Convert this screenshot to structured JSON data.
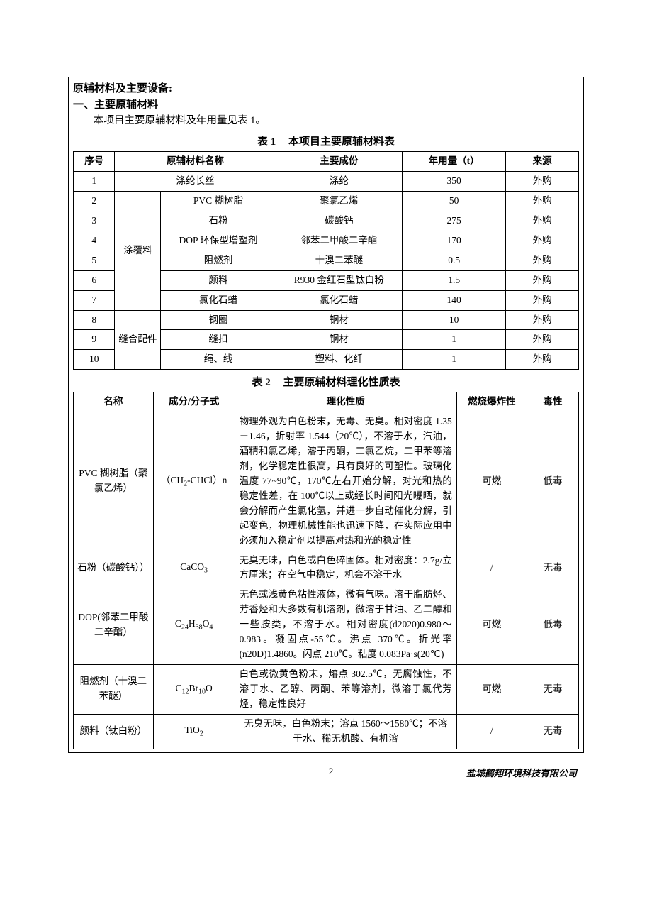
{
  "heading_main": "原辅材料及主要设备:",
  "heading_sub": "一、主要原辅材料",
  "intro": "本项目主要原辅材料及年用量见表 1。",
  "table1": {
    "caption_no": "表 1",
    "caption_title": "本项目主要原辅材料表",
    "headers": {
      "c1": "序号",
      "c2": "原辅材料名称",
      "c3": "主要成份",
      "c4": "年用量（t）",
      "c5": "来源"
    },
    "group_a": "涂覆料",
    "group_b": "缝合配件",
    "rows": {
      "r1": {
        "no": "1",
        "name": "涤纶长丝",
        "comp": "涤纶",
        "qty": "350",
        "src": "外购"
      },
      "r2": {
        "no": "2",
        "name": "PVC 糊树脂",
        "comp": "聚氯乙烯",
        "qty": "50",
        "src": "外购"
      },
      "r3": {
        "no": "3",
        "name": "石粉",
        "comp": "碳酸钙",
        "qty": "275",
        "src": "外购"
      },
      "r4": {
        "no": "4",
        "name": "DOP 环保型增塑剂",
        "comp": "邻苯二甲酸二辛酯",
        "qty": "170",
        "src": "外购"
      },
      "r5": {
        "no": "5",
        "name": "阻燃剂",
        "comp": "十溴二苯醚",
        "qty": "0.5",
        "src": "外购"
      },
      "r6": {
        "no": "6",
        "name": "颜料",
        "comp": "R930 金红石型钛白粉",
        "qty": "1.5",
        "src": "外购"
      },
      "r7": {
        "no": "7",
        "name": "氯化石蜡",
        "comp": "氯化石蜡",
        "qty": "140",
        "src": "外购"
      },
      "r8": {
        "no": "8",
        "name": "钢圈",
        "comp": "钢材",
        "qty": "10",
        "src": "外购"
      },
      "r9": {
        "no": "9",
        "name": "缝扣",
        "comp": "钢材",
        "qty": "1",
        "src": "外购"
      },
      "r10": {
        "no": "10",
        "name": "绳、线",
        "comp": "塑料、化纤",
        "qty": "1",
        "src": "外购"
      }
    }
  },
  "table2": {
    "caption_no": "表 2",
    "caption_title": "主要原辅材料理化性质表",
    "headers": {
      "c1": "名称",
      "c2": "成分/分子式",
      "c3": "理化性质",
      "c4": "燃烧爆炸性",
      "c5": "毒性"
    },
    "rows": {
      "r1": {
        "name": "PVC 糊树脂（聚氯乙烯）",
        "formula_html": "（CH<sub>2</sub>-CHCl）n",
        "prop": "物理外观为白色粉末，无毒、无臭。相对密度 1.35－1.46，折射率 1.544（20℃），不溶于水，汽油，酒精和氯乙烯，溶于丙酮，二氯乙烷，二甲苯等溶剂，化学稳定性很高，具有良好的可塑性。玻璃化温度 77~90℃，170℃左右开始分解，对光和热的稳定性差，在 100℃以上或经长时间阳光曝晒，就会分解而产生氯化氢，并进一步自动催化分解，引起变色，物理机械性能也迅速下降，在实际应用中必须加入稳定剂以提高对热和光的稳定性",
        "fire": "可燃",
        "tox": "低毒"
      },
      "r2": {
        "name": "石粉（碳酸钙））",
        "formula_html": "CaCO<sub>3</sub>",
        "prop": "无臭无味，白色或白色碎固体。相对密度：2.7g/立方厘米；在空气中稳定，机会不溶于水",
        "fire": "/",
        "tox": "无毒"
      },
      "r3": {
        "name": "DOP(邻苯二甲酸二辛酯）",
        "formula_html": "C<sub>24</sub>H<sub>38</sub>O<sub>4</sub>",
        "prop": "无色或浅黄色粘性液体，微有气味。溶于脂肪烃、芳香烃和大多数有机溶剂，微溶于甘油、乙二醇和一些胺类，不溶于水。相对密度(d2020)0.980～0.983。凝固点-55℃。沸点 370℃。折光率(n20D)1.4860。闪点 210℃。粘度 0.083Pa·s(20℃)",
        "fire": "可燃",
        "tox": "低毒"
      },
      "r4": {
        "name": "阻燃剂（十溴二苯醚）",
        "formula_html": "C<sub>12</sub>Br<sub>10</sub>O",
        "prop": "白色或微黄色粉末，熔点 302.5℃，无腐蚀性，不溶于水、乙醇、丙酮、苯等溶剂，微溶于氯代芳烃，稳定性良好",
        "fire": "可燃",
        "tox": "无毒"
      },
      "r5": {
        "name": "颜料（钛白粉）",
        "formula_html": "TiO<sub>2</sub>",
        "prop": "无臭无味，白色粉末；溶点 1560～1580℃；不溶于水、稀无机酸、有机溶",
        "fire": "/",
        "tox": "无毒"
      }
    }
  },
  "footer": {
    "page": "2",
    "company": "盐城鹤翔环境科技有限公司"
  },
  "col_widths": {
    "t1": [
      "54",
      "60",
      "150",
      "165",
      "135",
      "95"
    ],
    "t2": [
      "108",
      "110",
      "300",
      "95",
      "70"
    ]
  }
}
